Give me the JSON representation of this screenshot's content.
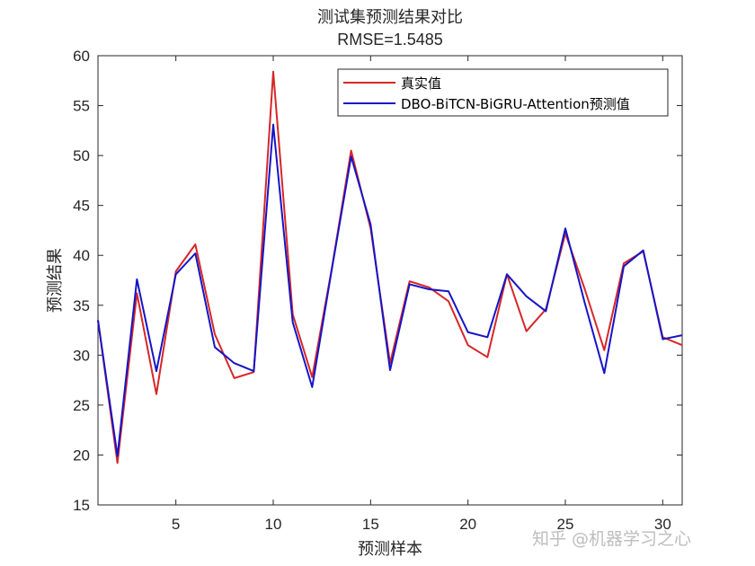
{
  "chart_data": {
    "type": "line",
    "title": "测试集预测结果对比",
    "subtitle": "RMSE=1.5485",
    "xlabel": "预测样本",
    "ylabel": "预测结果",
    "xlim": [
      1,
      31
    ],
    "ylim": [
      15,
      60
    ],
    "xticks": [
      5,
      10,
      15,
      20,
      25,
      30
    ],
    "yticks": [
      15,
      20,
      25,
      30,
      35,
      40,
      45,
      50,
      55,
      60
    ],
    "grid": false,
    "legend_position": "top-right",
    "x": [
      1,
      2,
      3,
      4,
      5,
      6,
      7,
      8,
      9,
      10,
      11,
      12,
      13,
      14,
      15,
      16,
      17,
      18,
      19,
      20,
      21,
      22,
      23,
      24,
      25,
      26,
      27,
      28,
      29,
      30,
      31
    ],
    "series": [
      {
        "name": "真实值",
        "color": "#d62728",
        "values": [
          33.5,
          19.2,
          36.2,
          26.1,
          38.4,
          41.1,
          32.1,
          27.7,
          28.3,
          58.4,
          34.1,
          27.8,
          38.6,
          50.5,
          42.7,
          29.2,
          37.4,
          36.8,
          35.4,
          31.0,
          29.8,
          38.1,
          32.4,
          34.6,
          42.2,
          36.6,
          30.5,
          39.2,
          40.4,
          31.8,
          31.0
        ]
      },
      {
        "name": "DBO-BiTCN-BiGRU-Attention预测值",
        "color": "#1515c8",
        "values": [
          33.5,
          19.9,
          37.6,
          28.4,
          38.1,
          40.2,
          30.8,
          29.2,
          28.4,
          53.1,
          33.3,
          26.8,
          38.5,
          49.9,
          43.1,
          28.5,
          37.1,
          36.6,
          36.4,
          32.3,
          31.8,
          38.1,
          35.9,
          34.4,
          42.7,
          35.2,
          28.2,
          38.9,
          40.5,
          31.6,
          32.0
        ]
      }
    ]
  },
  "watermark": "知乎 @机器学习之心"
}
